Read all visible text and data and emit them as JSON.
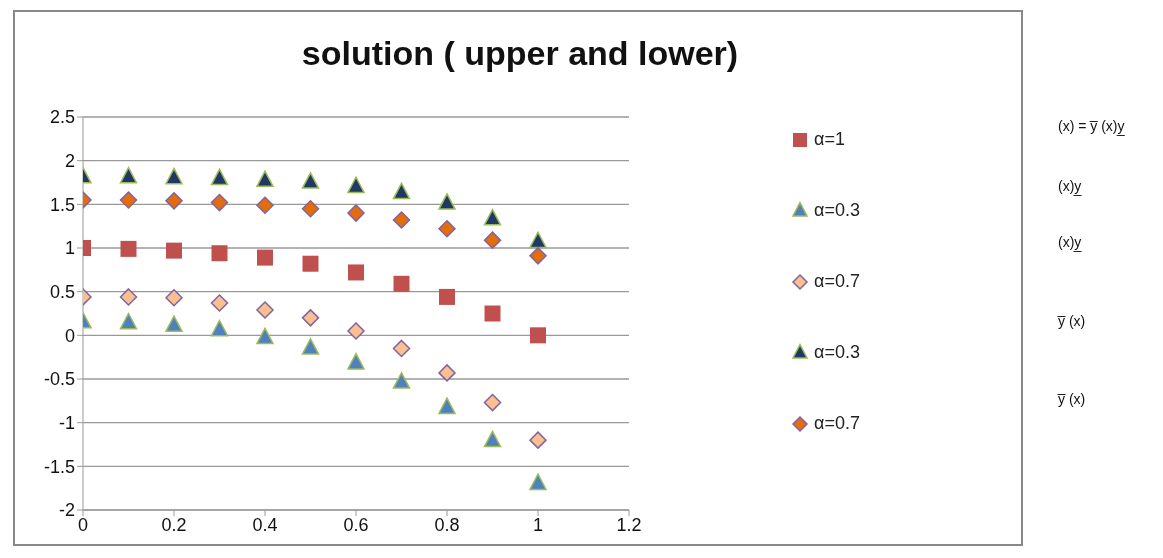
{
  "chart_data": {
    "type": "scatter",
    "title": "solution ( upper  and lower)",
    "x": [
      0,
      0.1,
      0.2,
      0.3,
      0.4,
      0.5,
      0.6,
      0.7,
      0.8,
      0.9,
      1
    ],
    "series": [
      {
        "name": "α=1",
        "color": "#c0504d",
        "marker": "square",
        "values": [
          1,
          0.99,
          0.97,
          0.94,
          0.89,
          0.82,
          0.72,
          0.59,
          0.44,
          0.25,
          0
        ]
      },
      {
        "name": "α=0.3",
        "color": "#4f81bd",
        "marker": "triangle",
        "values": [
          0.15,
          0.14,
          0.11,
          0.06,
          -0.03,
          -0.15,
          -0.32,
          -0.54,
          -0.83,
          -1.21,
          -1.7
        ]
      },
      {
        "name": "α=0.7",
        "color": "#fac090",
        "marker": "diamond",
        "values": [
          0.44,
          0.44,
          0.43,
          0.37,
          0.29,
          0.2,
          0.05,
          -0.15,
          -0.43,
          -0.77,
          -1.2
        ]
      },
      {
        "name": "α=0.3",
        "color": "#1f3864",
        "marker": "triangle",
        "values": [
          1.81,
          1.81,
          1.8,
          1.79,
          1.77,
          1.75,
          1.7,
          1.63,
          1.51,
          1.33,
          1.07
        ]
      },
      {
        "name": "α=0.7",
        "color": "#e46c0a",
        "marker": "diamond",
        "values": [
          1.55,
          1.55,
          1.54,
          1.52,
          1.49,
          1.45,
          1.4,
          1.32,
          1.22,
          1.09,
          0.91
        ]
      }
    ],
    "xlim": [
      0,
      1.2
    ],
    "xticks": [
      0,
      0.2,
      0.4,
      0.6,
      0.8,
      1,
      1.2
    ],
    "ylim": [
      -2,
      2.5
    ],
    "yticks": [
      -2,
      -1.5,
      -1,
      -0.5,
      0,
      0.5,
      1,
      1.5,
      2,
      2.5
    ],
    "grid": "y",
    "legend": "right",
    "annotations": [
      "(x) = y̅ (x)y̲",
      "(x)y̲",
      "(x)y̲",
      "y̅ (x)",
      "y̅ (x)"
    ]
  }
}
